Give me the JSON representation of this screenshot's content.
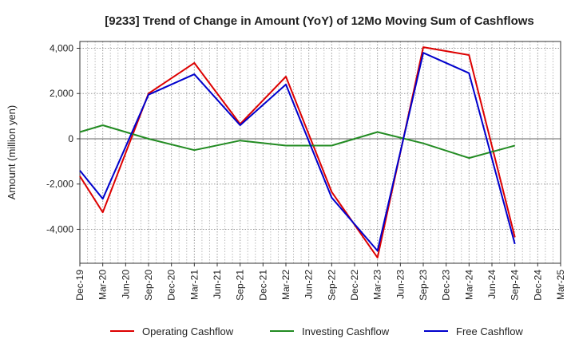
{
  "chart_data": {
    "type": "line",
    "title": "[9233]  Trend of Change in Amount (YoY) of 12Mo Moving Sum of Cashflows",
    "xlabel": "",
    "ylabel": "Amount (million yen)",
    "ylim": [
      -5500,
      4300
    ],
    "yticks": [
      4000,
      2000,
      0,
      -2000,
      -4000
    ],
    "ytick_labels": [
      "4,000",
      "2,000",
      "0",
      "-2,000",
      "-4,000"
    ],
    "categories": [
      "Dec-19",
      "Mar-20",
      "Jun-20",
      "Sep-20",
      "Dec-20",
      "Mar-21",
      "Jun-21",
      "Sep-21",
      "Dec-21",
      "Mar-22",
      "Jun-22",
      "Sep-22",
      "Dec-22",
      "Mar-23",
      "Jun-23",
      "Sep-23",
      "Dec-23",
      "Mar-24",
      "Jun-24",
      "Sep-24",
      "Dec-24",
      "Mar-25"
    ],
    "series": [
      {
        "name": "Operating Cashflow",
        "color": "#dd0000",
        "values": [
          -1650,
          -3250,
          null,
          2000,
          null,
          3350,
          null,
          650,
          null,
          2750,
          null,
          -2350,
          null,
          -5250,
          null,
          4050,
          null,
          3700,
          null,
          -4350,
          null,
          null
        ]
      },
      {
        "name": "Investing Cashflow",
        "color": "#228b22",
        "values": [
          300,
          600,
          null,
          0,
          null,
          -500,
          null,
          -80,
          null,
          -300,
          null,
          -300,
          null,
          300,
          null,
          -200,
          null,
          -850,
          null,
          -300,
          null,
          null
        ]
      },
      {
        "name": "Free Cashflow",
        "color": "#0000cc",
        "values": [
          -1400,
          -2650,
          null,
          1950,
          null,
          2850,
          null,
          600,
          null,
          2400,
          null,
          -2600,
          null,
          -4950,
          null,
          3800,
          null,
          2900,
          null,
          -4650,
          null,
          null
        ]
      }
    ]
  }
}
